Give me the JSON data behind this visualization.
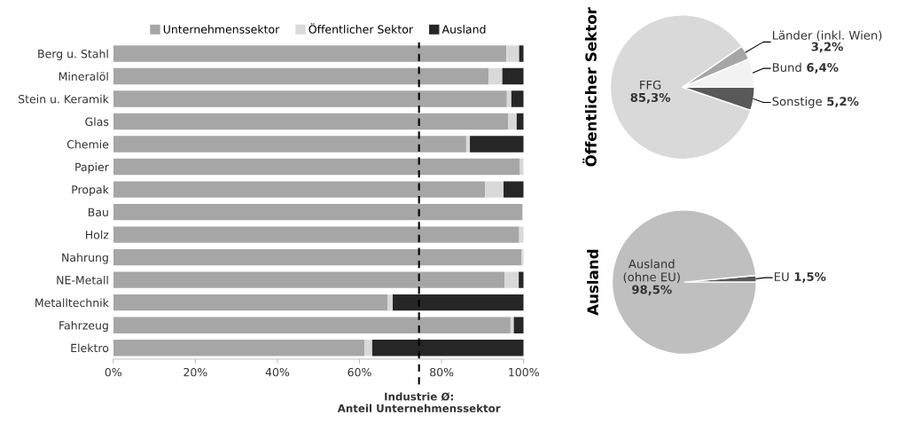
{
  "chart_data": [
    {
      "type": "bar",
      "orientation": "horizontal",
      "stacked": true,
      "categories": [
        "Berg u. Stahl",
        "Mineralöl",
        "Stein u. Keramik",
        "Glas",
        "Chemie",
        "Papier",
        "Propak",
        "Bau",
        "Holz",
        "Nahrung",
        "NE-Metall",
        "Metalltechnik",
        "Fahrzeug",
        "Elektro"
      ],
      "series": [
        {
          "name": "Unternehmenssektor",
          "color": "#a6a6a6",
          "values": [
            95.8,
            91.5,
            95.9,
            96.2,
            86.0,
            99.1,
            90.6,
            99.7,
            98.9,
            99.5,
            95.4,
            66.8,
            96.8,
            61.2
          ]
        },
        {
          "name": "Öffentlicher Sektor",
          "color": "#d9d9d9",
          "values": [
            3.1,
            3.3,
            1.1,
            2.1,
            0.9,
            0.9,
            4.5,
            null,
            1.1,
            0.5,
            3.4,
            1.3,
            0.8,
            1.9
          ]
        },
        {
          "name": "Ausland",
          "color": "#262626",
          "values": [
            1.1,
            5.2,
            3.0,
            1.7,
            13.1,
            0.0,
            4.9,
            0.0,
            0.0,
            0.0,
            1.2,
            31.9,
            2.4,
            36.9
          ]
        }
      ],
      "xlim": [
        0,
        100
      ],
      "xticks": [
        {
          "value": 0,
          "label": "0%"
        },
        {
          "value": 20,
          "label": "20%"
        },
        {
          "value": 40,
          "label": "40%"
        },
        {
          "value": 60,
          "label": "60%"
        },
        {
          "value": 80,
          "label": "80%"
        },
        {
          "value": 100,
          "label": "100%"
        }
      ],
      "ref_lines": [
        {
          "axis": "x",
          "value": 74.5,
          "label": "Industrie Ø:\nAnteil Unternehmenssektor",
          "color": "#000000",
          "line_style": "dashed"
        }
      ],
      "legend": "top",
      "grid": false
    },
    {
      "type": "pie",
      "ylabel": "Öffentlicher Sektor",
      "categories": [
        "Bund",
        "Länder (inkl. Wien)",
        "FFG",
        "Sonstige"
      ],
      "values": [
        6.4,
        3.2,
        85.3,
        5.2
      ],
      "value_labels": [
        "6,4%",
        "3,2%",
        "85,3%",
        "5,2%"
      ],
      "colors": [
        "#f2f2f2",
        "#a6a6a6",
        "#d9d9d9",
        "#595959"
      ]
    },
    {
      "type": "pie",
      "ylabel": "Ausland",
      "categories": [
        "EU",
        "Ausland\n(ohne EU)"
      ],
      "values": [
        1.5,
        98.5
      ],
      "value_labels": [
        "1,5%",
        "98,5%"
      ],
      "colors": [
        "#595959",
        "#bfbfbf"
      ]
    }
  ]
}
